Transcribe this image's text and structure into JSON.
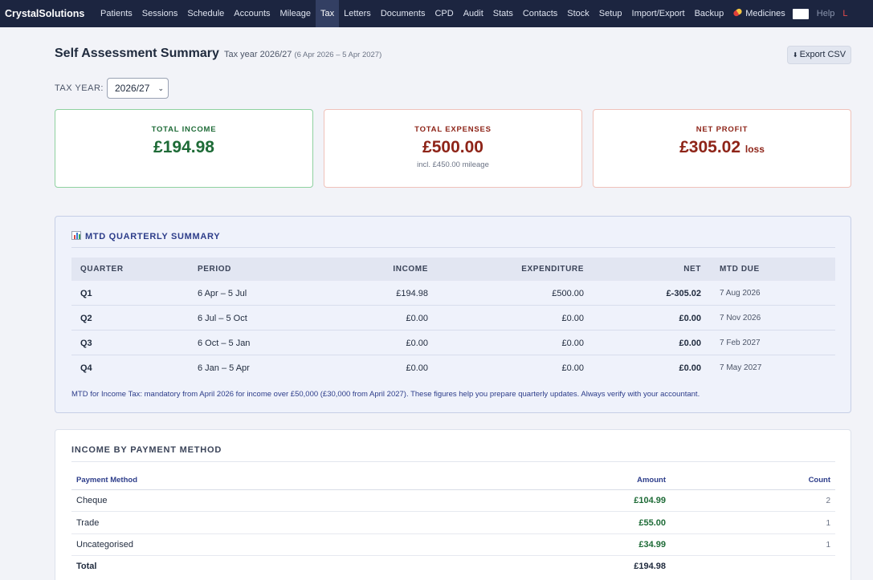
{
  "nav": {
    "brand": "CrystalSolutions",
    "items": [
      {
        "label": "Patients",
        "active": false
      },
      {
        "label": "Sessions",
        "active": false
      },
      {
        "label": "Schedule",
        "active": false
      },
      {
        "label": "Accounts",
        "active": false
      },
      {
        "label": "Mileage",
        "active": false
      },
      {
        "label": "Tax",
        "active": true
      },
      {
        "label": "Letters",
        "active": false
      },
      {
        "label": "Documents",
        "active": false
      },
      {
        "label": "CPD",
        "active": false
      },
      {
        "label": "Audit",
        "active": false
      },
      {
        "label": "Stats",
        "active": false
      },
      {
        "label": "Contacts",
        "active": false
      },
      {
        "label": "Stock",
        "active": false
      },
      {
        "label": "Setup",
        "active": false
      },
      {
        "label": "Import/Export",
        "active": false
      },
      {
        "label": "Backup",
        "active": false
      }
    ],
    "medicines_label": "Medicines",
    "help_label": "Help",
    "truncated_label": "L"
  },
  "header": {
    "title": "Self Assessment Summary",
    "tax_year_text": "Tax year 2026/27",
    "tax_year_range": "(6 Apr 2026 – 5 Apr 2027)",
    "export_label": "Export CSV"
  },
  "tax_year_select": {
    "label": "TAX YEAR:",
    "selected": "2026/27"
  },
  "cards": {
    "income": {
      "label": "TOTAL INCOME",
      "value": "£194.98"
    },
    "expenses": {
      "label": "TOTAL EXPENSES",
      "value": "£500.00",
      "note": "incl. £450.00 mileage"
    },
    "profit": {
      "label": "NET PROFIT",
      "value": "£305.02",
      "suffix": "loss"
    }
  },
  "colors": {
    "nav_bg": "#1c2540",
    "positive": "#1e6b37",
    "negative": "#8e2418",
    "accent": "#2d3d8a"
  },
  "mtd": {
    "title": "MTD QUARTERLY SUMMARY",
    "columns": [
      "QUARTER",
      "PERIOD",
      "INCOME",
      "EXPENDITURE",
      "NET",
      "MTD DUE"
    ],
    "rows": [
      {
        "quarter": "Q1",
        "period": "6 Apr – 5 Jul",
        "income": "£194.98",
        "expenditure": "£500.00",
        "net": "£-305.02",
        "due": "7 Aug 2026"
      },
      {
        "quarter": "Q2",
        "period": "6 Jul – 5 Oct",
        "income": "£0.00",
        "expenditure": "£0.00",
        "net": "£0.00",
        "due": "7 Nov 2026"
      },
      {
        "quarter": "Q3",
        "period": "6 Oct – 5 Jan",
        "income": "£0.00",
        "expenditure": "£0.00",
        "net": "£0.00",
        "due": "7 Feb 2027"
      },
      {
        "quarter": "Q4",
        "period": "6 Jan – 5 Apr",
        "income": "£0.00",
        "expenditure": "£0.00",
        "net": "£0.00",
        "due": "7 May 2027"
      }
    ],
    "note": "MTD for Income Tax: mandatory from April 2026 for income over £50,000 (£30,000 from April 2027). These figures help you prepare quarterly updates. Always verify with your accountant."
  },
  "payment": {
    "title": "INCOME BY PAYMENT METHOD",
    "columns": [
      "Payment Method",
      "Amount",
      "Count"
    ],
    "rows": [
      {
        "method": "Cheque",
        "amount": "£104.99",
        "count": "2"
      },
      {
        "method": "Trade",
        "amount": "£55.00",
        "count": "1"
      },
      {
        "method": "Uncategorised",
        "amount": "£34.99",
        "count": "1"
      }
    ],
    "total_label": "Total",
    "total_amount": "£194.98"
  }
}
